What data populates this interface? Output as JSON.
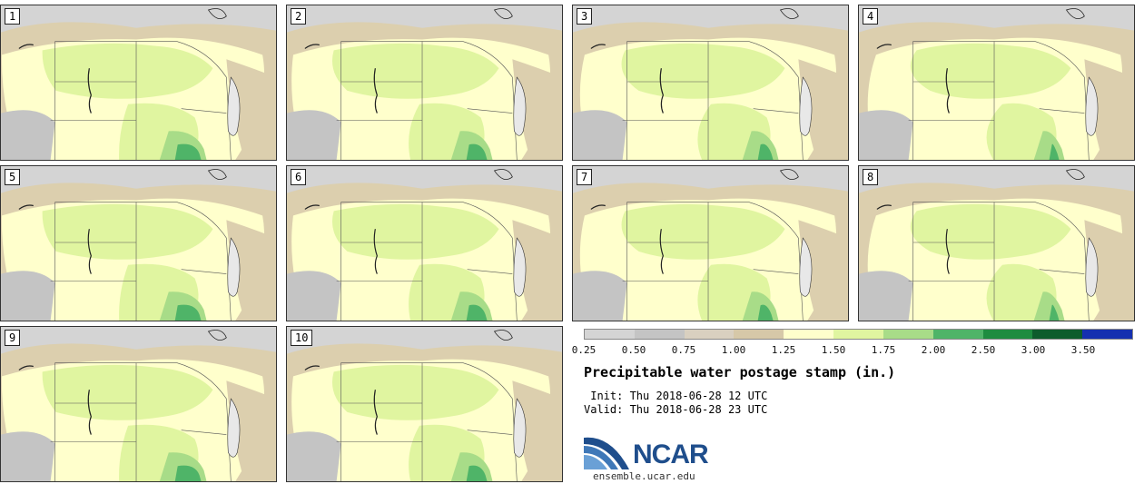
{
  "stamps": [
    "1",
    "2",
    "3",
    "4",
    "5",
    "6",
    "7",
    "8",
    "9",
    "10"
  ],
  "legend": {
    "colors": [
      "#d4d4d4",
      "#c4c4c4",
      "#d9d0c0",
      "#d6c8a8",
      "#ffffcc",
      "#e0f5a0",
      "#a8dc88",
      "#4fb468",
      "#1e8c40",
      "#0d5c2c",
      "#1530b0"
    ],
    "ticks": [
      "0.25",
      "0.50",
      "0.75",
      "1.00",
      "1.25",
      "1.50",
      "1.75",
      "2.00",
      "2.50",
      "3.00",
      "3.50"
    ]
  },
  "title": "Precipitable water postage stamp (in.)",
  "init_line": " Init: Thu 2018-06-28 12 UTC",
  "valid_line": "Valid: Thu 2018-06-28 23 UTC",
  "logo": {
    "name": "NCAR",
    "url": "ensemble.ucar.edu"
  }
}
